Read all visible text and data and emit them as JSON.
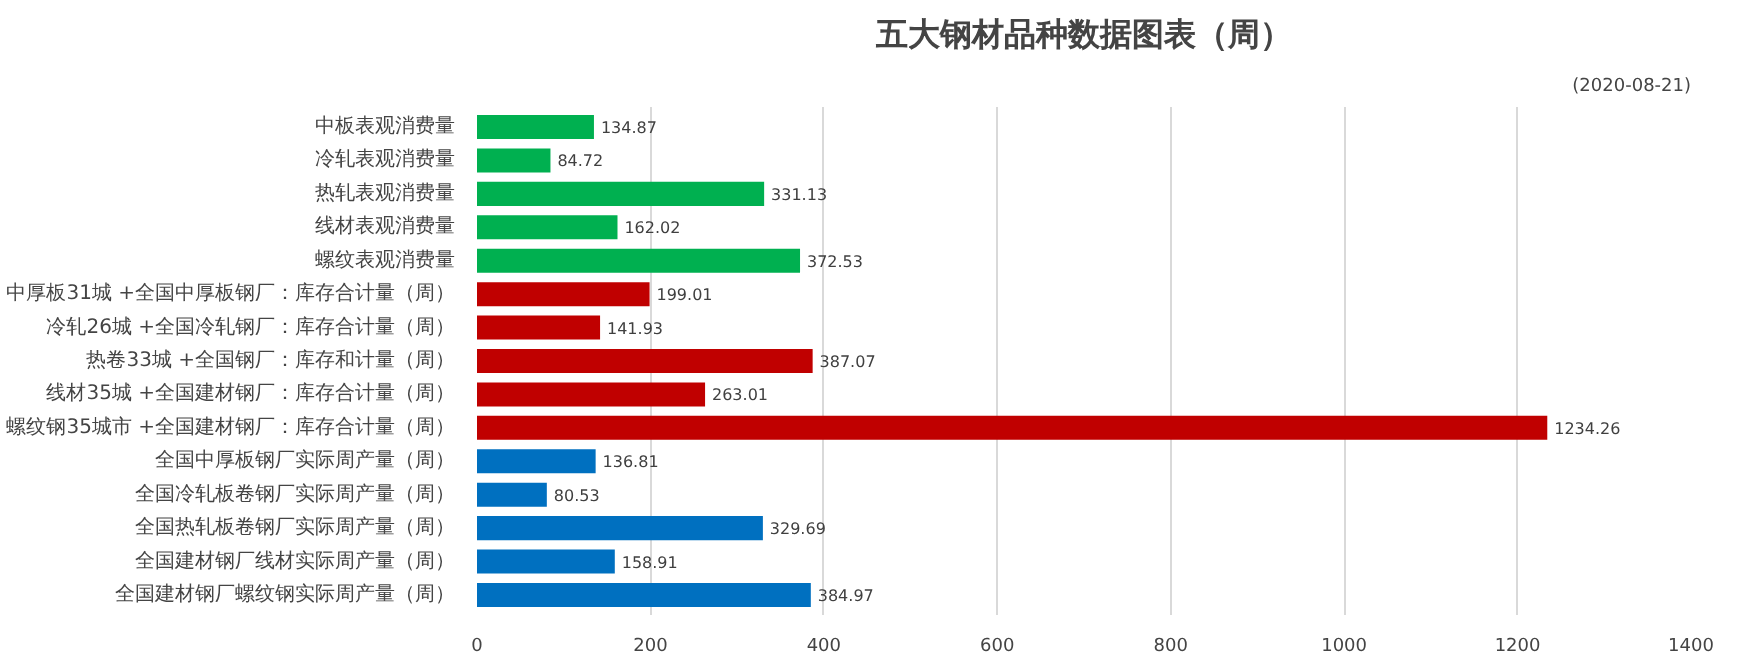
{
  "chart_data": {
    "type": "bar",
    "orientation": "horizontal",
    "title": "五大钢材品种数据图表（周）",
    "subtitle": "(2020-08-21)",
    "categories": [
      "中板表观消费量",
      "冷轧表观消费量",
      "热轧表观消费量",
      "线材表观消费量",
      "螺纹表观消费量",
      "中厚板31城 +全国中厚板钢厂：库存合计量（周）",
      "冷轧26城 +全国冷轧钢厂：库存合计量（周）",
      "热卷33城 +全国钢厂：库存和计量（周）",
      "线材35城 +全国建材钢厂：库存合计量（周）",
      "螺纹钢35城市 +全国建材钢厂：库存合计量（周）",
      "全国中厚板钢厂实际周产量（周）",
      "全国冷轧板卷钢厂实际周产量（周）",
      "全国热轧板卷钢厂实际周产量（周）",
      "全国建材钢厂线材实际周产量（周）",
      "全国建材钢厂螺纹钢实际周产量（周）"
    ],
    "values": [
      134.87,
      84.72,
      331.13,
      162.02,
      372.53,
      199.01,
      141.93,
      387.07,
      263.01,
      1234.26,
      136.81,
      80.53,
      329.69,
      158.91,
      384.97
    ],
    "colors": [
      "#00b050",
      "#00b050",
      "#00b050",
      "#00b050",
      "#00b050",
      "#c00000",
      "#c00000",
      "#c00000",
      "#c00000",
      "#c00000",
      "#0070c0",
      "#0070c0",
      "#0070c0",
      "#0070c0",
      "#0070c0"
    ],
    "xlim": [
      0,
      1400
    ],
    "xticks": [
      0,
      200,
      400,
      600,
      800,
      1000,
      1200,
      1400
    ],
    "grid": "x",
    "data_labels": true
  }
}
